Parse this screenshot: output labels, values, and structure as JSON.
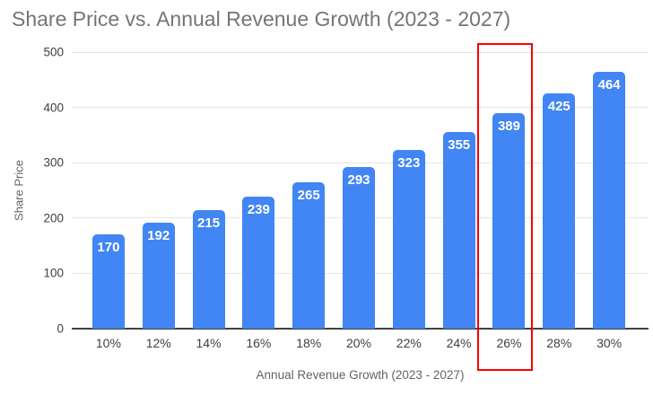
{
  "chart_data": {
    "type": "bar",
    "title": "Share Price vs. Annual Revenue Growth (2023 - 2027)",
    "xlabel": "Annual Revenue Growth (2023 - 2027)",
    "ylabel": "Share Price",
    "categories": [
      "10%",
      "12%",
      "14%",
      "16%",
      "18%",
      "20%",
      "22%",
      "24%",
      "26%",
      "28%",
      "30%"
    ],
    "values": [
      170,
      192,
      215,
      239,
      265,
      293,
      323,
      355,
      389,
      425,
      464
    ],
    "ylim": [
      0,
      500
    ],
    "yticks": [
      0,
      100,
      200,
      300,
      400,
      500
    ],
    "grid": true,
    "legend": "none",
    "value_labels": "inside-top",
    "highlight": {
      "category": "26%",
      "shape": "rectangle"
    },
    "colors": {
      "bar": "#4285f4",
      "value-label": "#ffffff",
      "title": "#757575",
      "axis-title": "#5f6368",
      "tick": "#3c4043",
      "grid": "#e6e6e6",
      "axis": "#424242",
      "highlight": "#ff0000",
      "background": "#ffffff"
    }
  }
}
